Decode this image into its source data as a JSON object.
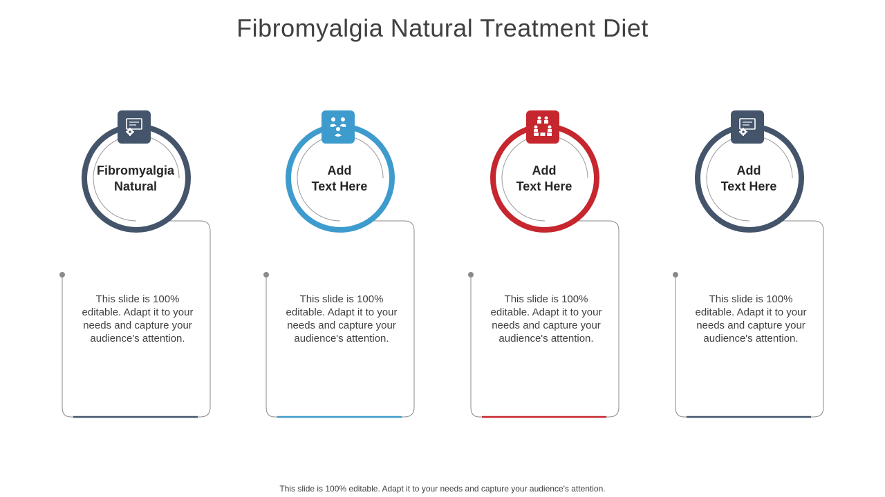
{
  "title": "Fibromyalgia Natural Treatment Diet",
  "footer": "This slide is 100% editable. Adapt it to your needs and capture your audience's attention.",
  "colors": {
    "slate": "#44546A",
    "blue": "#3E9BCD",
    "red": "#C6262E",
    "line": "#8A8A8A"
  },
  "cards": [
    {
      "label_line1": "Fibromyalgia",
      "label_line2": "Natural",
      "icon": "monitor-gear-icon",
      "color": "#44546A",
      "desc": "This slide is 100% editable. Adapt it to your needs and capture your audience's attention."
    },
    {
      "label_line1": "Add",
      "label_line2": "Text Here",
      "icon": "people-network-icon",
      "color": "#3E9BCD",
      "desc": "This slide is 100% editable. Adapt it to your needs and capture your audience's attention."
    },
    {
      "label_line1": "Add",
      "label_line2": "Text Here",
      "icon": "voting-people-icon",
      "color": "#C6262E",
      "desc": "This slide is 100% editable. Adapt it to your needs and capture your audience's attention."
    },
    {
      "label_line1": "Add",
      "label_line2": "Text Here",
      "icon": "monitor-gear-icon",
      "color": "#44546A",
      "desc": "This slide is 100% editable. Adapt it to your needs and capture your audience's attention."
    }
  ]
}
